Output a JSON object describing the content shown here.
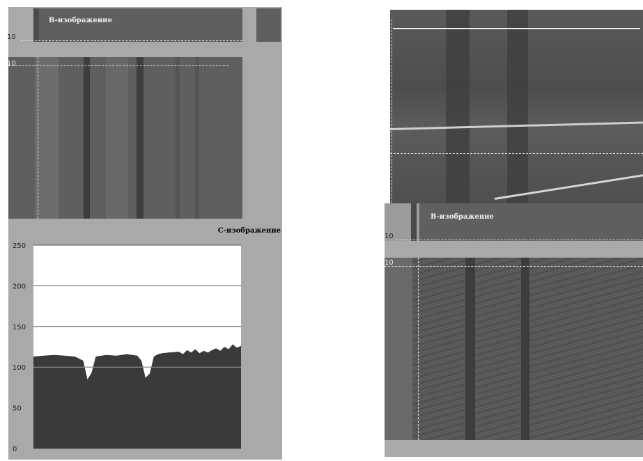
{
  "left_panel": {
    "b_scan_label": "B-изображение",
    "b_scan_depth_marker": "10",
    "c_scan_depth_marker": "10",
    "c_scan_label": "C-изображение"
  },
  "right_panel": {
    "b_scan_label": "B-изображение",
    "b_scan_depth_marker": "10",
    "c_scan_depth_marker": "10"
  },
  "chart_data": {
    "type": "area",
    "title": "",
    "xlabel": "",
    "ylabel": "",
    "ylim": [
      0,
      250
    ],
    "yticks": [
      "250",
      "200",
      "150",
      "100",
      "50",
      "0"
    ],
    "ytick_values": [
      250,
      200,
      150,
      100,
      50,
      0
    ],
    "grid": true,
    "colors": {
      "fill": "#3a3a3a",
      "background": "#ffffff",
      "grid": "#555555"
    },
    "x": [
      0,
      5,
      10,
      15,
      20,
      24,
      26,
      28,
      30,
      35,
      40,
      45,
      50,
      52,
      54,
      56,
      58,
      60,
      62,
      65,
      70,
      72,
      74,
      76,
      78,
      80,
      82,
      84,
      86,
      88,
      90,
      92,
      94,
      96,
      98,
      100
    ],
    "values": [
      113,
      114,
      115,
      114,
      113,
      108,
      85,
      93,
      113,
      115,
      114,
      116,
      114,
      108,
      87,
      92,
      113,
      116,
      117,
      118,
      119,
      116,
      121,
      118,
      122,
      117,
      120,
      118,
      121,
      123,
      120,
      125,
      122,
      128,
      124,
      126
    ]
  }
}
